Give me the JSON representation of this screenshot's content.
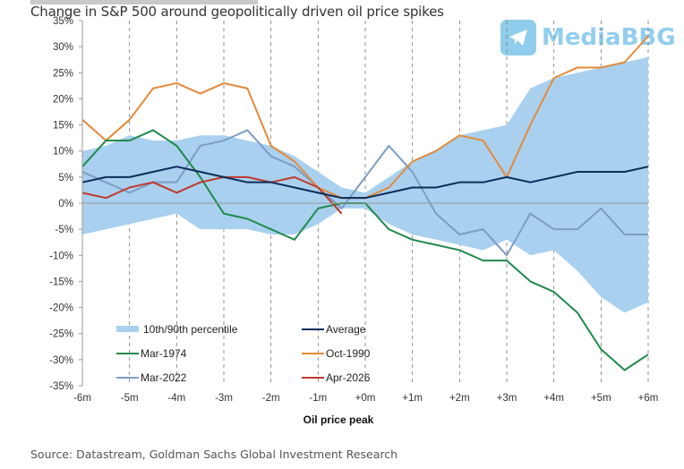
{
  "title": "Change in S&P 500 around geopolitically driven oil price spikes",
  "source": "Source: Datastream, Goldman Sachs Global Investment Research",
  "watermark": {
    "text": "MediaBBG",
    "icon": "telegram-plane-icon"
  },
  "colors": {
    "band": "#a9d0ee",
    "average": "#0c2d5a",
    "mar1974": "#1f8a4c",
    "oct1990": "#e48a3a",
    "mar2022": "#7d9cc6",
    "apr2026": "#c0392b",
    "overlap": "#7f7f7f"
  },
  "chart_data": {
    "type": "line",
    "title": "Change in S&P 500 around geopolitically driven oil price spikes",
    "xlabel": "Oil price peak",
    "ylabel": "",
    "xlim": [
      -6,
      6
    ],
    "ylim": [
      -35,
      35
    ],
    "x_ticks": [
      "-6m",
      "-5m",
      "-4m",
      "-3m",
      "-2m",
      "-1m",
      "+0m",
      "+1m",
      "+2m",
      "+3m",
      "+4m",
      "+5m",
      "+6m"
    ],
    "y_ticks": [
      "35%",
      "30%",
      "25%",
      "20%",
      "15%",
      "10%",
      "5%",
      "0%",
      "-5%",
      "-10%",
      "-15%",
      "-20%",
      "-25%",
      "-30%",
      "-35%"
    ],
    "grid": "vertical dashed at each month",
    "legend_position": "bottom-center",
    "legend": [
      "10th/90th percentile",
      "Average",
      "Mar-1974",
      "Oct-1990",
      "Mar-2022",
      "Apr-2026"
    ],
    "x": [
      -6,
      -5.5,
      -5,
      -4.5,
      -4,
      -3.5,
      -3,
      -2.5,
      -2,
      -1.5,
      -1,
      -0.5,
      0,
      0.5,
      1,
      1.5,
      2,
      2.5,
      3,
      3.5,
      4,
      4.5,
      5,
      5.5,
      6
    ],
    "band": {
      "name": "10th/90th percentile",
      "upper": [
        10,
        11,
        13,
        12,
        12,
        13,
        13,
        12,
        11,
        9,
        6,
        3,
        2,
        5,
        8,
        10,
        13,
        14,
        15,
        22,
        24,
        25,
        26,
        27,
        28
      ],
      "lower": [
        -6,
        -5,
        -4,
        -3,
        -2,
        -5,
        -5,
        -5,
        -6,
        -6,
        -4,
        -1,
        -1,
        -4,
        -6,
        -7,
        -8,
        -9,
        -7,
        -10,
        -9,
        -13,
        -18,
        -21,
        -19
      ]
    },
    "series": [
      {
        "name": "Average",
        "key": "average",
        "values": [
          4,
          5,
          5,
          6,
          7,
          6,
          5,
          4,
          4,
          3,
          2,
          1,
          1,
          2,
          3,
          3,
          4,
          4,
          5,
          4,
          5,
          6,
          6,
          6,
          7
        ]
      },
      {
        "name": "Mar-1974",
        "key": "mar1974",
        "values": [
          7,
          12,
          12,
          14,
          11,
          5,
          -2,
          -3,
          -5,
          -7,
          -1,
          0,
          0,
          -5,
          -7,
          -8,
          -9,
          -11,
          -11,
          -15,
          -17,
          -21,
          -28,
          -32,
          -29
        ]
      },
      {
        "name": "Oct-1990",
        "key": "oct1990",
        "values": [
          16,
          12,
          16,
          22,
          23,
          21,
          23,
          22,
          11,
          8,
          3,
          1,
          1,
          3,
          8,
          10,
          13,
          12,
          5,
          15,
          24,
          26,
          26,
          27,
          32
        ]
      },
      {
        "name": "Mar-2022",
        "key": "mar2022",
        "values": [
          6,
          4,
          2,
          4,
          4,
          11,
          12,
          14,
          9,
          7,
          3,
          -1,
          5,
          11,
          6,
          -2,
          -6,
          -5,
          -10,
          -2,
          -5,
          -5,
          -1,
          -6,
          -6
        ]
      },
      {
        "name": "Apr-2026",
        "key": "apr2026",
        "values": [
          2,
          1,
          3,
          4,
          2,
          4,
          5,
          5,
          4,
          5,
          3,
          -2,
          null,
          null,
          null,
          null,
          null,
          null,
          null,
          null,
          null,
          null,
          null,
          null,
          null
        ]
      }
    ]
  }
}
